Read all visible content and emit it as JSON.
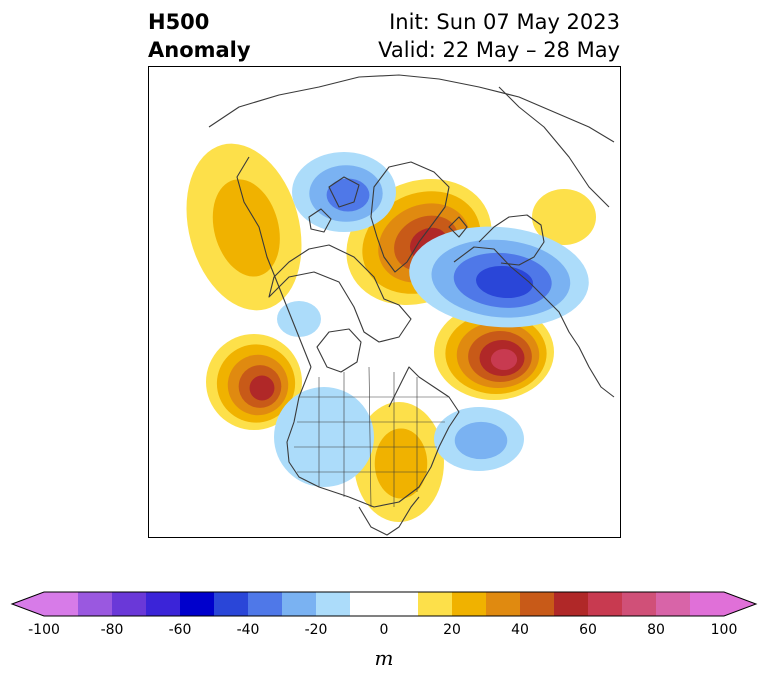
{
  "header": {
    "title_line1": "H500",
    "title_line2": "Anomaly",
    "init_text": "Init: Sun 07 May 2023",
    "valid_text": "Valid: 22 May – 28 May"
  },
  "colorbar": {
    "unit": "m",
    "tick_labels": [
      "-100",
      "-80",
      "-60",
      "-40",
      "-20",
      "0",
      "20",
      "40",
      "60",
      "80",
      "100"
    ],
    "colors": {
      "neg_extend": "#d77be8",
      "bins": [
        "#d77be8",
        "#9a58e0",
        "#6a38d8",
        "#3b24d8",
        "#0000cc",
        "#2a46d8",
        "#4f78e8",
        "#7ab2f2",
        "#acdcfa",
        "#ffffff",
        "#ffffff",
        "#fde04a",
        "#f0b200",
        "#e08a10",
        "#c85a18",
        "#b02828",
        "#c83a50",
        "#d05078",
        "#d864a8",
        "#e070d8"
      ],
      "pos_extend": "#e070d8"
    }
  },
  "anomaly_colors": {
    "pos1": "#fde04a",
    "pos2": "#f0b200",
    "pos3": "#e08a10",
    "pos4": "#c85a18",
    "pos5": "#b02828",
    "pos6": "#c83a50",
    "neg1": "#acdcfa",
    "neg2": "#7ab2f2",
    "neg3": "#4f78e8",
    "neg4": "#2a46d8"
  }
}
